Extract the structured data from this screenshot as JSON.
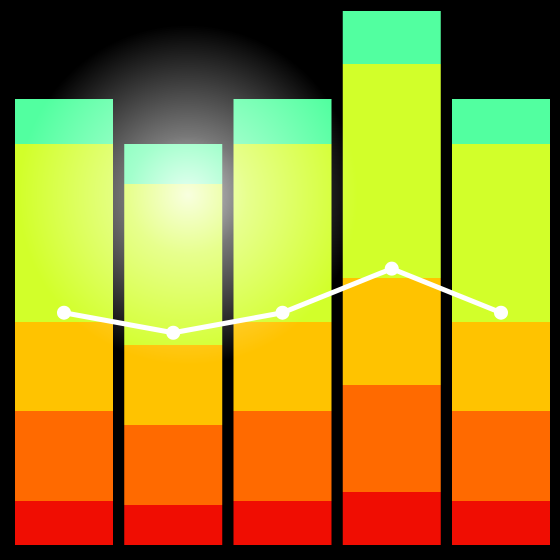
{
  "icon": {
    "name": "equalizer-bars-icon",
    "background": "#000000",
    "glow_color": "#ffffff",
    "line_color": "#ffffff",
    "segment_colors": {
      "red": "#f00d02",
      "orange": "#ff6a00",
      "amber": "#ffc300",
      "lime": "#d2ff2a",
      "mint": "#52ffa0"
    },
    "bars": [
      {
        "segments": [
          {
            "color": "red",
            "span": 44
          },
          {
            "color": "orange",
            "span": 90
          },
          {
            "color": "amber",
            "span": 89
          },
          {
            "color": "lime",
            "span": 178
          },
          {
            "color": "mint",
            "span": 45
          }
        ],
        "level": 0.53
      },
      {
        "segments": [
          {
            "color": "red",
            "span": 40
          },
          {
            "color": "orange",
            "span": 80
          },
          {
            "color": "amber",
            "span": 80
          },
          {
            "color": "lime",
            "span": 161
          },
          {
            "color": "mint",
            "span": 40
          }
        ],
        "level": 0.48
      },
      {
        "segments": [
          {
            "color": "red",
            "span": 44
          },
          {
            "color": "orange",
            "span": 90
          },
          {
            "color": "amber",
            "span": 89
          },
          {
            "color": "lime",
            "span": 178
          },
          {
            "color": "mint",
            "span": 45
          }
        ],
        "level": 0.53
      },
      {
        "segments": [
          {
            "color": "red",
            "span": 53
          },
          {
            "color": "orange",
            "span": 107
          },
          {
            "color": "amber",
            "span": 107
          },
          {
            "color": "lime",
            "span": 214
          },
          {
            "color": "mint",
            "span": 53
          }
        ],
        "level": 0.64
      },
      {
        "segments": [
          {
            "color": "red",
            "span": 44
          },
          {
            "color": "orange",
            "span": 90
          },
          {
            "color": "amber",
            "span": 89
          },
          {
            "color": "lime",
            "span": 178
          },
          {
            "color": "mint",
            "span": 45
          }
        ],
        "level": 0.53
      }
    ]
  }
}
